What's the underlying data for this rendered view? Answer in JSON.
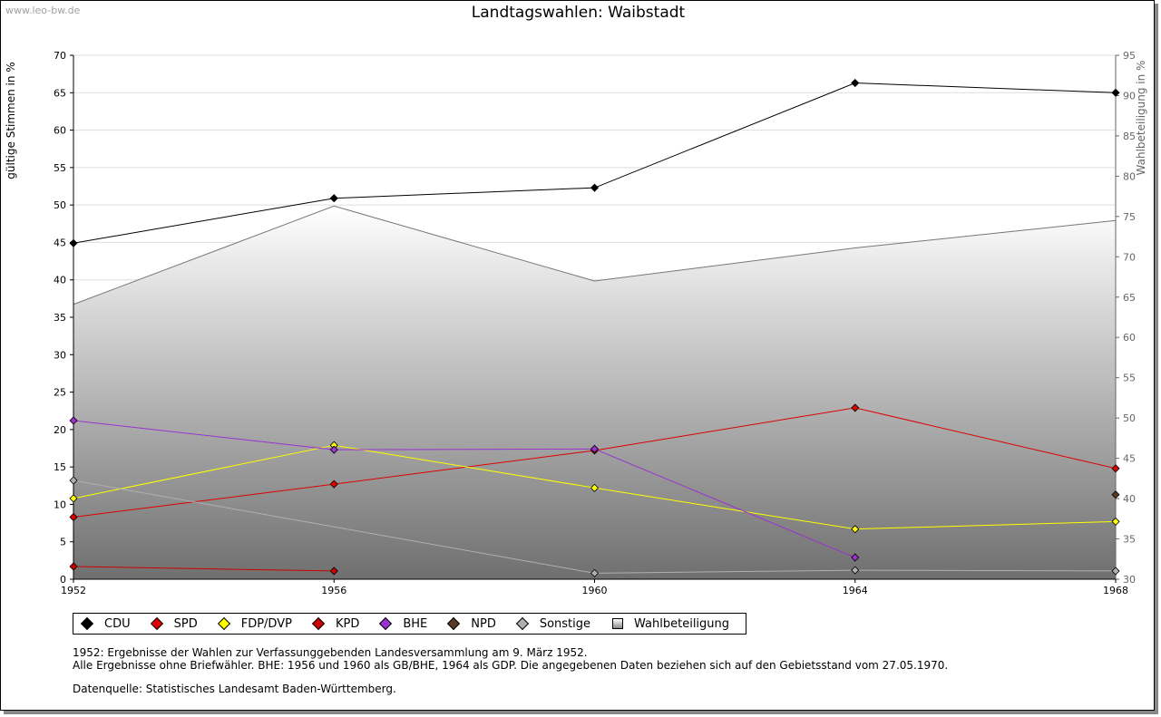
{
  "watermark": "www.leo-bw.de",
  "title": "Landtagswahlen: Waibstadt",
  "chart_data": {
    "type": "line",
    "x": [
      1952,
      1956,
      1960,
      1964,
      1968
    ],
    "ylabel": "gültige Stimmen in %",
    "ylim": [
      0,
      70
    ],
    "yticks": [
      "0",
      "5",
      "10",
      "15",
      "20",
      "25",
      "30",
      "35",
      "40",
      "45",
      "50",
      "55",
      "60",
      "65",
      "70"
    ],
    "y2label": "Wahlbeteiligung in %",
    "y2lim": [
      30,
      95
    ],
    "y2ticks": [
      "30",
      "35",
      "40",
      "45",
      "50",
      "55",
      "60",
      "65",
      "70",
      "75",
      "80",
      "85",
      "90",
      "95"
    ],
    "xticks": [
      "1952",
      "1956",
      "1960",
      "1964",
      "1968"
    ],
    "grid": true,
    "legend_position": "bottom",
    "series": [
      {
        "name": "CDU",
        "color": "#000000",
        "values": [
          44.9,
          50.9,
          52.3,
          66.3,
          65.0
        ]
      },
      {
        "name": "SPD",
        "color": "#dd0000",
        "values": [
          8.3,
          12.7,
          17.2,
          22.9,
          14.8
        ]
      },
      {
        "name": "FDP/DVP",
        "color": "#ffff00",
        "values": [
          10.8,
          17.9,
          12.2,
          6.7,
          7.7
        ]
      },
      {
        "name": "KPD",
        "color": "#cc0000",
        "values": [
          1.7,
          1.1,
          null,
          null,
          null
        ]
      },
      {
        "name": "BHE",
        "color": "#9933cc",
        "values": [
          21.2,
          17.3,
          17.4,
          2.9,
          null
        ]
      },
      {
        "name": "NPD",
        "color": "#5a3a22",
        "values": [
          null,
          null,
          null,
          null,
          11.3
        ]
      },
      {
        "name": "Sonstige",
        "color": "#b0b0b0",
        "values": [
          13.2,
          null,
          0.8,
          1.2,
          1.1
        ]
      },
      {
        "name": "Wahlbeteiligung",
        "axis": "right",
        "color": "#777777",
        "values": [
          64.1,
          76.3,
          67.0,
          71.1,
          74.5
        ]
      }
    ]
  },
  "notes": {
    "line1": "1952: Ergebnisse der Wahlen zur Verfassunggebenden Landesversammlung am 9. März 1952.",
    "line2": "Alle Ergebnisse ohne Briefwähler. BHE: 1956 und 1960 als GB/BHE, 1964 als GDP. Die angegebenen Daten beziehen sich auf den Gebietsstand vom 27.05.1970.",
    "line3": "Datenquelle: Statistisches Landesamt Baden-Württemberg."
  }
}
